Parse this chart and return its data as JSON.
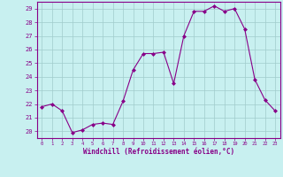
{
  "x": [
    0,
    1,
    2,
    3,
    4,
    5,
    6,
    7,
    8,
    9,
    10,
    11,
    12,
    13,
    14,
    15,
    16,
    17,
    18,
    19,
    20,
    21,
    22,
    23
  ],
  "y": [
    21.8,
    22.0,
    21.5,
    19.9,
    20.1,
    20.5,
    20.6,
    20.5,
    22.2,
    24.5,
    25.7,
    25.7,
    25.8,
    23.5,
    27.0,
    28.8,
    28.8,
    29.2,
    28.8,
    29.0,
    27.5,
    23.8,
    22.3,
    21.5
  ],
  "line_color": "#880088",
  "marker": "D",
  "marker_size": 2.0,
  "bg_color": "#c8f0f0",
  "grid_color": "#a0cccc",
  "xlim": [
    -0.5,
    23.5
  ],
  "ylim": [
    19.5,
    29.5
  ],
  "yticks": [
    20,
    21,
    22,
    23,
    24,
    25,
    26,
    27,
    28,
    29
  ],
  "xticks": [
    0,
    1,
    2,
    3,
    4,
    5,
    6,
    7,
    8,
    9,
    10,
    11,
    12,
    13,
    14,
    15,
    16,
    17,
    18,
    19,
    20,
    21,
    22,
    23
  ],
  "xlabel": "Windchill (Refroidissement éolien,°C)",
  "label_color": "#880088",
  "tick_color": "#880088",
  "spine_color": "#880088"
}
